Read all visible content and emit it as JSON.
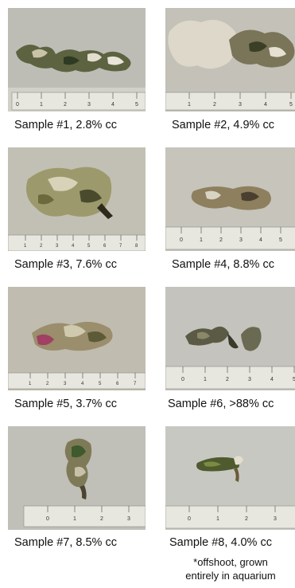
{
  "samples": [
    {
      "caption": "Sample #1, 2.8% cc",
      "ruler_ticks": [
        "0",
        "1",
        "2",
        "3",
        "4",
        "5"
      ]
    },
    {
      "caption": "Sample #2, 4.9% cc",
      "ruler_ticks": [
        "1",
        "2",
        "3",
        "4",
        "5"
      ]
    },
    {
      "caption": "Sample #3, 7.6% cc",
      "ruler_ticks": [
        "1",
        "2",
        "3",
        "4",
        "5",
        "6",
        "7",
        "8"
      ]
    },
    {
      "caption": "Sample #4, 8.8% cc",
      "ruler_ticks": [
        "0",
        "1",
        "2",
        "3",
        "4",
        "5",
        "6"
      ]
    },
    {
      "caption": "Sample #5, 3.7% cc",
      "ruler_ticks": [
        "1",
        "2",
        "3",
        "4",
        "5",
        "6",
        "7"
      ]
    },
    {
      "caption": "Sample #6, >88% cc",
      "ruler_ticks": [
        "0",
        "1",
        "2",
        "3",
        "4",
        "5"
      ]
    },
    {
      "caption": "Sample #7, 8.5% cc",
      "ruler_ticks": [
        "0",
        "1",
        "2",
        "3"
      ]
    },
    {
      "caption": "Sample #8, 4.0% cc",
      "ruler_ticks": [
        "0",
        "1",
        "2",
        "3"
      ]
    }
  ],
  "footnote_line1": "*offshoot, grown",
  "footnote_line2": "entirely in aquarium"
}
